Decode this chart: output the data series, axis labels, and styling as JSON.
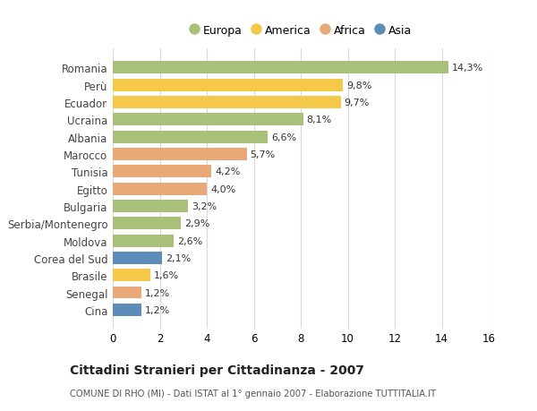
{
  "categories": [
    "Romania",
    "Perù",
    "Ecuador",
    "Ucraina",
    "Albania",
    "Marocco",
    "Tunisia",
    "Egitto",
    "Bulgaria",
    "Serbia/Montenegro",
    "Moldova",
    "Corea del Sud",
    "Brasile",
    "Senegal",
    "Cina"
  ],
  "values": [
    14.3,
    9.8,
    9.7,
    8.1,
    6.6,
    5.7,
    4.2,
    4.0,
    3.2,
    2.9,
    2.6,
    2.1,
    1.6,
    1.2,
    1.2
  ],
  "labels": [
    "14,3%",
    "9,8%",
    "9,7%",
    "8,1%",
    "6,6%",
    "5,7%",
    "4,2%",
    "4,0%",
    "3,2%",
    "2,9%",
    "2,6%",
    "2,1%",
    "1,6%",
    "1,2%",
    "1,2%"
  ],
  "continents": [
    "Europa",
    "America",
    "America",
    "Europa",
    "Europa",
    "Africa",
    "Africa",
    "Africa",
    "Europa",
    "Europa",
    "Europa",
    "Asia",
    "America",
    "Africa",
    "Asia"
  ],
  "continent_colors": {
    "Europa": "#a8c07a",
    "America": "#f5c84a",
    "Africa": "#e8a878",
    "Asia": "#5b8db8"
  },
  "legend_order": [
    "Europa",
    "America",
    "Africa",
    "Asia"
  ],
  "title": "Cittadini Stranieri per Cittadinanza - 2007",
  "subtitle": "COMUNE DI RHO (MI) - Dati ISTAT al 1° gennaio 2007 - Elaborazione TUTTITALIA.IT",
  "xlim": [
    0,
    16
  ],
  "xticks": [
    0,
    2,
    4,
    6,
    8,
    10,
    12,
    14,
    16
  ],
  "background_color": "#ffffff",
  "grid_color": "#d8d8d8",
  "bar_height": 0.72
}
